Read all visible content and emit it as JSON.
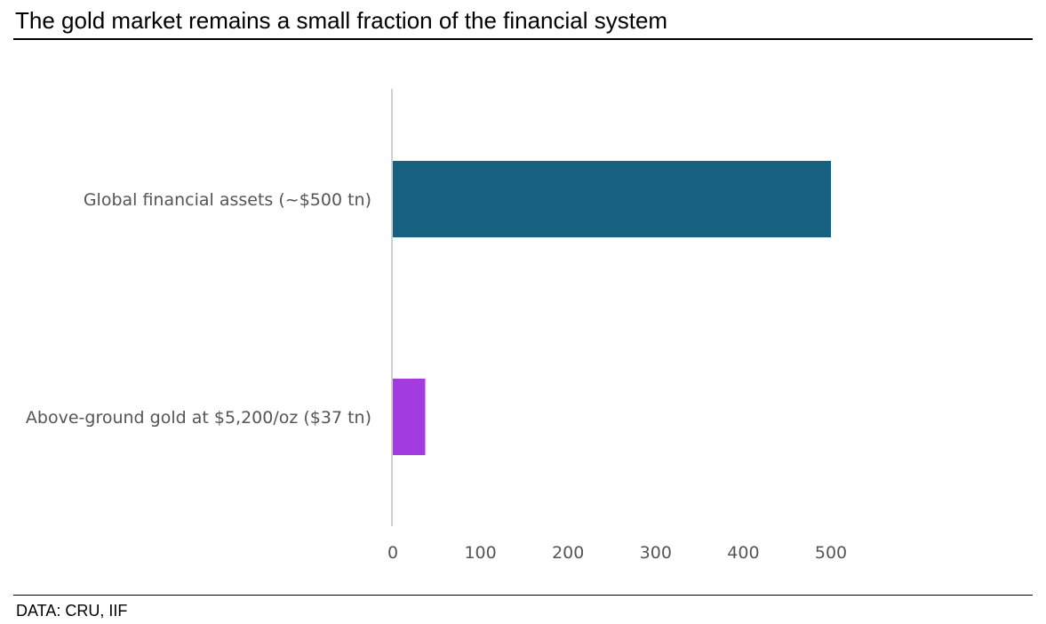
{
  "header": {
    "title": "The gold market remains a small fraction of the financial system"
  },
  "footer": {
    "source": "DATA: CRU, IIF"
  },
  "chart_data": {
    "type": "bar",
    "orientation": "horizontal",
    "categories": [
      "Global financial assets (~$500 tn)",
      "Above-ground gold at $5,200/oz ($37 tn)"
    ],
    "values": [
      500,
      37
    ],
    "colors": [
      "#17607f",
      "#a33cdf"
    ],
    "title": "",
    "xlabel": "",
    "ylabel": "",
    "xlim": [
      0,
      500
    ],
    "xticks": [
      0,
      100,
      200,
      300,
      400,
      500
    ],
    "grid": false,
    "legend": "none"
  }
}
